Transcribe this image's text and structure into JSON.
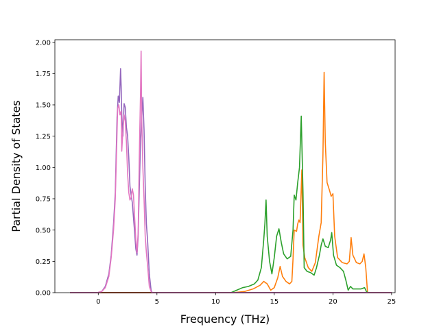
{
  "chart_data": {
    "type": "line",
    "xlabel": "Frequency (THz)",
    "ylabel": "Partial Density of States",
    "xlim": [
      -3.7,
      25.3
    ],
    "ylim": [
      0,
      2.02
    ],
    "xticks": [
      "0",
      "5",
      "10",
      "15",
      "20",
      "25"
    ],
    "xtick_values": [
      0,
      5,
      10,
      15,
      20,
      25
    ],
    "yticks": [
      "0.00",
      "0.25",
      "0.50",
      "0.75",
      "1.00",
      "1.25",
      "1.50",
      "1.75",
      "2.00"
    ],
    "ytick_values": [
      0,
      0.25,
      0.5,
      0.75,
      1.0,
      1.25,
      1.5,
      1.75,
      2.0
    ],
    "grid": false,
    "legend": "none",
    "series": [
      {
        "color": "#1f77b4",
        "points": [
          [
            -2.4,
            0
          ],
          [
            25.0,
            0
          ]
        ]
      },
      {
        "color": "#ff7f0e",
        "points": [
          [
            -2.4,
            0
          ],
          [
            11.5,
            0
          ],
          [
            12.5,
            0.01
          ],
          [
            13.2,
            0.03
          ],
          [
            13.8,
            0.06
          ],
          [
            14.1,
            0.09
          ],
          [
            14.4,
            0.07
          ],
          [
            14.7,
            0.02
          ],
          [
            15.0,
            0.04
          ],
          [
            15.3,
            0.12
          ],
          [
            15.5,
            0.21
          ],
          [
            15.7,
            0.13
          ],
          [
            16.0,
            0.09
          ],
          [
            16.3,
            0.07
          ],
          [
            16.5,
            0.09
          ],
          [
            16.6,
            0.27
          ],
          [
            16.7,
            0.5
          ],
          [
            16.9,
            0.49
          ],
          [
            17.0,
            0.55
          ],
          [
            17.1,
            0.58
          ],
          [
            17.2,
            0.56
          ],
          [
            17.35,
            0.98
          ],
          [
            17.45,
            0.38
          ],
          [
            17.6,
            0.28
          ],
          [
            17.9,
            0.2
          ],
          [
            18.2,
            0.17
          ],
          [
            18.5,
            0.24
          ],
          [
            18.8,
            0.45
          ],
          [
            19.0,
            0.56
          ],
          [
            19.15,
            1.1
          ],
          [
            19.25,
            1.76
          ],
          [
            19.35,
            1.2
          ],
          [
            19.5,
            0.88
          ],
          [
            19.7,
            0.82
          ],
          [
            19.85,
            0.77
          ],
          [
            20.0,
            0.79
          ],
          [
            20.15,
            0.45
          ],
          [
            20.4,
            0.28
          ],
          [
            20.8,
            0.24
          ],
          [
            21.2,
            0.23
          ],
          [
            21.4,
            0.25
          ],
          [
            21.55,
            0.44
          ],
          [
            21.7,
            0.3
          ],
          [
            22.0,
            0.24
          ],
          [
            22.3,
            0.23
          ],
          [
            22.5,
            0.25
          ],
          [
            22.65,
            0.31
          ],
          [
            22.8,
            0.2
          ],
          [
            22.95,
            0.0
          ],
          [
            25.0,
            0
          ]
        ]
      },
      {
        "color": "#2ca02c",
        "points": [
          [
            -2.4,
            0
          ],
          [
            11.3,
            0
          ],
          [
            11.8,
            0.02
          ],
          [
            12.3,
            0.04
          ],
          [
            12.8,
            0.05
          ],
          [
            13.3,
            0.07
          ],
          [
            13.6,
            0.1
          ],
          [
            13.9,
            0.2
          ],
          [
            14.1,
            0.42
          ],
          [
            14.2,
            0.55
          ],
          [
            14.3,
            0.74
          ],
          [
            14.4,
            0.45
          ],
          [
            14.6,
            0.25
          ],
          [
            14.8,
            0.15
          ],
          [
            15.0,
            0.28
          ],
          [
            15.2,
            0.45
          ],
          [
            15.4,
            0.51
          ],
          [
            15.6,
            0.4
          ],
          [
            15.8,
            0.31
          ],
          [
            16.1,
            0.27
          ],
          [
            16.4,
            0.29
          ],
          [
            16.6,
            0.5
          ],
          [
            16.7,
            0.78
          ],
          [
            16.85,
            0.74
          ],
          [
            17.0,
            0.88
          ],
          [
            17.15,
            1.0
          ],
          [
            17.3,
            1.41
          ],
          [
            17.45,
            0.8
          ],
          [
            17.55,
            0.2
          ],
          [
            17.8,
            0.17
          ],
          [
            18.1,
            0.16
          ],
          [
            18.4,
            0.14
          ],
          [
            18.6,
            0.2
          ],
          [
            18.85,
            0.3
          ],
          [
            19.0,
            0.38
          ],
          [
            19.15,
            0.43
          ],
          [
            19.35,
            0.37
          ],
          [
            19.6,
            0.36
          ],
          [
            19.8,
            0.42
          ],
          [
            19.9,
            0.48
          ],
          [
            20.05,
            0.3
          ],
          [
            20.3,
            0.22
          ],
          [
            20.6,
            0.2
          ],
          [
            20.9,
            0.17
          ],
          [
            21.1,
            0.1
          ],
          [
            21.3,
            0.02
          ],
          [
            21.5,
            0.05
          ],
          [
            21.7,
            0.03
          ],
          [
            22.0,
            0.03
          ],
          [
            22.4,
            0.03
          ],
          [
            22.7,
            0.04
          ],
          [
            22.85,
            0.01
          ],
          [
            23.0,
            0
          ],
          [
            25.0,
            0
          ]
        ]
      },
      {
        "color": "#d62728",
        "points": [
          [
            -2.4,
            0
          ],
          [
            25.0,
            0
          ]
        ]
      },
      {
        "color": "#9467bd",
        "points": [
          [
            -2.4,
            0
          ],
          [
            -0.1,
            0
          ],
          [
            0.3,
            0.01
          ],
          [
            0.6,
            0.05
          ],
          [
            0.9,
            0.15
          ],
          [
            1.1,
            0.3
          ],
          [
            1.3,
            0.55
          ],
          [
            1.45,
            0.8
          ],
          [
            1.55,
            1.2
          ],
          [
            1.6,
            1.4
          ],
          [
            1.7,
            1.57
          ],
          [
            1.8,
            1.52
          ],
          [
            1.9,
            1.79
          ],
          [
            1.95,
            1.65
          ],
          [
            2.0,
            1.42
          ],
          [
            2.1,
            1.25
          ],
          [
            2.2,
            1.51
          ],
          [
            2.3,
            1.48
          ],
          [
            2.4,
            1.32
          ],
          [
            2.5,
            1.25
          ],
          [
            2.6,
            1.08
          ],
          [
            2.7,
            0.85
          ],
          [
            2.8,
            0.78
          ],
          [
            2.9,
            0.72
          ],
          [
            3.0,
            0.6
          ],
          [
            3.1,
            0.48
          ],
          [
            3.2,
            0.35
          ],
          [
            3.3,
            0.3
          ],
          [
            3.4,
            0.45
          ],
          [
            3.5,
            0.85
          ],
          [
            3.6,
            1.2
          ],
          [
            3.7,
            1.4
          ],
          [
            3.8,
            1.56
          ],
          [
            3.9,
            1.3
          ],
          [
            4.0,
            0.85
          ],
          [
            4.1,
            0.55
          ],
          [
            4.2,
            0.42
          ],
          [
            4.35,
            0.15
          ],
          [
            4.5,
            0.02
          ],
          [
            4.6,
            0
          ],
          [
            25.0,
            0
          ]
        ]
      },
      {
        "color": "#e377c2",
        "points": [
          [
            -2.4,
            0
          ],
          [
            -0.1,
            0
          ],
          [
            0.3,
            0.01
          ],
          [
            0.6,
            0.04
          ],
          [
            0.9,
            0.13
          ],
          [
            1.1,
            0.28
          ],
          [
            1.3,
            0.5
          ],
          [
            1.45,
            0.75
          ],
          [
            1.55,
            1.1
          ],
          [
            1.65,
            1.47
          ],
          [
            1.75,
            1.5
          ],
          [
            1.85,
            1.42
          ],
          [
            1.95,
            1.45
          ],
          [
            2.0,
            1.13
          ],
          [
            2.1,
            1.3
          ],
          [
            2.2,
            1.42
          ],
          [
            2.3,
            1.37
          ],
          [
            2.4,
            1.2
          ],
          [
            2.5,
            0.95
          ],
          [
            2.6,
            0.8
          ],
          [
            2.7,
            0.74
          ],
          [
            2.8,
            0.76
          ],
          [
            2.9,
            0.83
          ],
          [
            3.0,
            0.78
          ],
          [
            3.1,
            0.6
          ],
          [
            3.2,
            0.42
          ],
          [
            3.3,
            0.32
          ],
          [
            3.4,
            0.48
          ],
          [
            3.5,
            1.1
          ],
          [
            3.6,
            1.6
          ],
          [
            3.65,
            1.93
          ],
          [
            3.7,
            1.4
          ],
          [
            3.8,
            1.0
          ],
          [
            3.9,
            0.75
          ],
          [
            4.0,
            0.45
          ],
          [
            4.1,
            0.32
          ],
          [
            4.2,
            0.22
          ],
          [
            4.35,
            0.05
          ],
          [
            4.5,
            0.01
          ],
          [
            4.6,
            0
          ],
          [
            25.0,
            0
          ]
        ]
      }
    ]
  }
}
